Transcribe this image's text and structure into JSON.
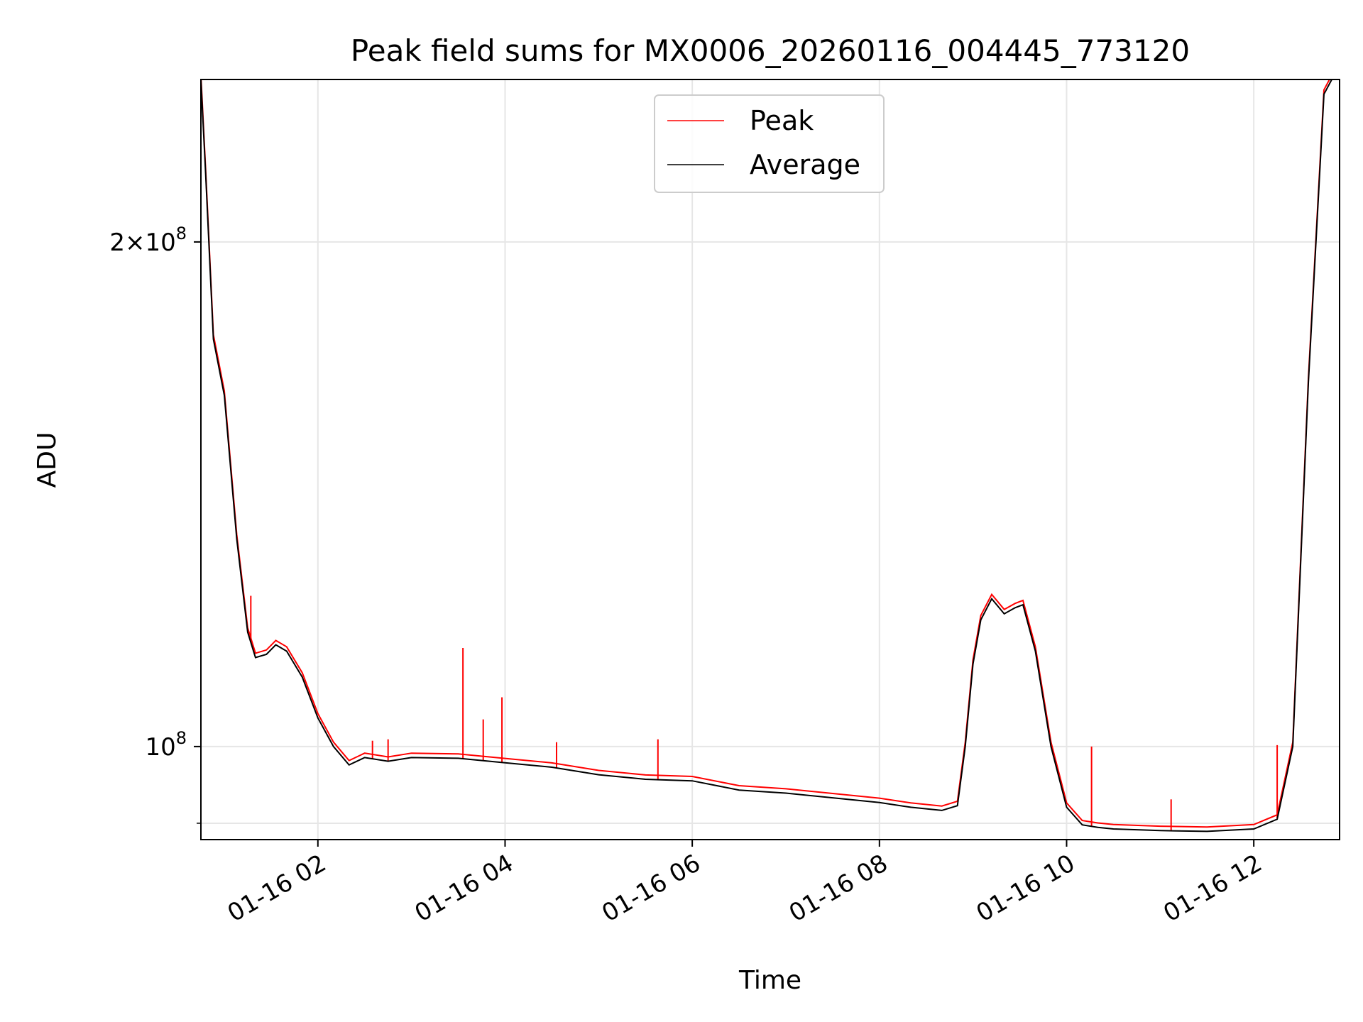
{
  "chart_data": {
    "type": "line",
    "title": "Peak field sums for MX0006_20260116_004445_773120",
    "xlabel": "Time",
    "ylabel": "ADU",
    "y_scale": "log",
    "xlim": [
      "01-16 00:45",
      "01-16 12:55"
    ],
    "ylim": [
      88000000,
      250000000
    ],
    "x_ticks": [
      "01-16 02",
      "01-16 04",
      "01-16 06",
      "01-16 08",
      "01-16 10",
      "01-16 12"
    ],
    "y_tick_labels": [
      {
        "value": 200000000,
        "mantissa": "2",
        "exponent": "8"
      },
      {
        "value": 100000000,
        "mantissa": "",
        "exponent": "8"
      }
    ],
    "y_minor_ticks": [
      90000000
    ],
    "grid": true,
    "legend": {
      "placement": "upper center",
      "entries": [
        {
          "name": "Peak",
          "color": "#ff0000"
        },
        {
          "name": "Average",
          "color": "#000000"
        }
      ]
    },
    "series": [
      {
        "name": "Average",
        "color": "#000000",
        "points": [
          [
            "01-16 00:45",
            250000000
          ],
          [
            "01-16 00:48",
            220000000
          ],
          [
            "01-16 00:53",
            175000000
          ],
          [
            "01-16 01:00",
            162000000
          ],
          [
            "01-16 01:08",
            133000000
          ],
          [
            "01-16 01:15",
            117000000
          ],
          [
            "01-16 01:20",
            113000000
          ],
          [
            "01-16 01:27",
            113500000
          ],
          [
            "01-16 01:33",
            115000000
          ],
          [
            "01-16 01:40",
            114000000
          ],
          [
            "01-16 01:50",
            110000000
          ],
          [
            "01-16 02:00",
            104000000
          ],
          [
            "01-16 02:10",
            100000000
          ],
          [
            "01-16 02:20",
            97500000
          ],
          [
            "01-16 02:30",
            98500000
          ],
          [
            "01-16 02:45",
            98000000
          ],
          [
            "01-16 03:00",
            98500000
          ],
          [
            "01-16 03:30",
            98400000
          ],
          [
            "01-16 04:00",
            97800000
          ],
          [
            "01-16 04:30",
            97200000
          ],
          [
            "01-16 05:00",
            96200000
          ],
          [
            "01-16 05:30",
            95600000
          ],
          [
            "01-16 06:00",
            95400000
          ],
          [
            "01-16 06:30",
            94200000
          ],
          [
            "01-16 07:00",
            93800000
          ],
          [
            "01-16 07:30",
            93200000
          ],
          [
            "01-16 08:00",
            92600000
          ],
          [
            "01-16 08:20",
            92000000
          ],
          [
            "01-16 08:40",
            91600000
          ],
          [
            "01-16 08:50",
            92200000
          ],
          [
            "01-16 08:55",
            100000000
          ],
          [
            "01-16 09:00",
            112000000
          ],
          [
            "01-16 09:05",
            119000000
          ],
          [
            "01-16 09:12",
            122500000
          ],
          [
            "01-16 09:20",
            120000000
          ],
          [
            "01-16 09:27",
            121000000
          ],
          [
            "01-16 09:32",
            121500000
          ],
          [
            "01-16 09:40",
            114000000
          ],
          [
            "01-16 09:50",
            100000000
          ],
          [
            "01-16 10:00",
            92000000
          ],
          [
            "01-16 10:10",
            89800000
          ],
          [
            "01-16 10:20",
            89500000
          ],
          [
            "01-16 10:30",
            89300000
          ],
          [
            "01-16 11:00",
            89100000
          ],
          [
            "01-16 11:30",
            89000000
          ],
          [
            "01-16 12:00",
            89300000
          ],
          [
            "01-16 12:15",
            90500000
          ],
          [
            "01-16 12:25",
            100000000
          ],
          [
            "01-16 12:35",
            165000000
          ],
          [
            "01-16 12:45",
            245000000
          ],
          [
            "01-16 12:50",
            250000000
          ]
        ]
      },
      {
        "name": "Peak",
        "color": "#ff0000",
        "spikes": [
          [
            "01-16 03:33",
            114500000
          ],
          [
            "01-16 03:46",
            103800000
          ],
          [
            "01-16 03:58",
            107000000
          ],
          [
            "01-16 04:33",
            100600000
          ],
          [
            "01-16 05:38",
            101000000
          ],
          [
            "01-16 10:16",
            100000000
          ],
          [
            "01-16 11:07",
            93000000
          ],
          [
            "01-16 12:15",
            100200000
          ],
          [
            "01-16 01:17",
            123000000
          ],
          [
            "01-16 02:35",
            100800000
          ],
          [
            "01-16 02:45",
            101000000
          ]
        ]
      }
    ]
  }
}
